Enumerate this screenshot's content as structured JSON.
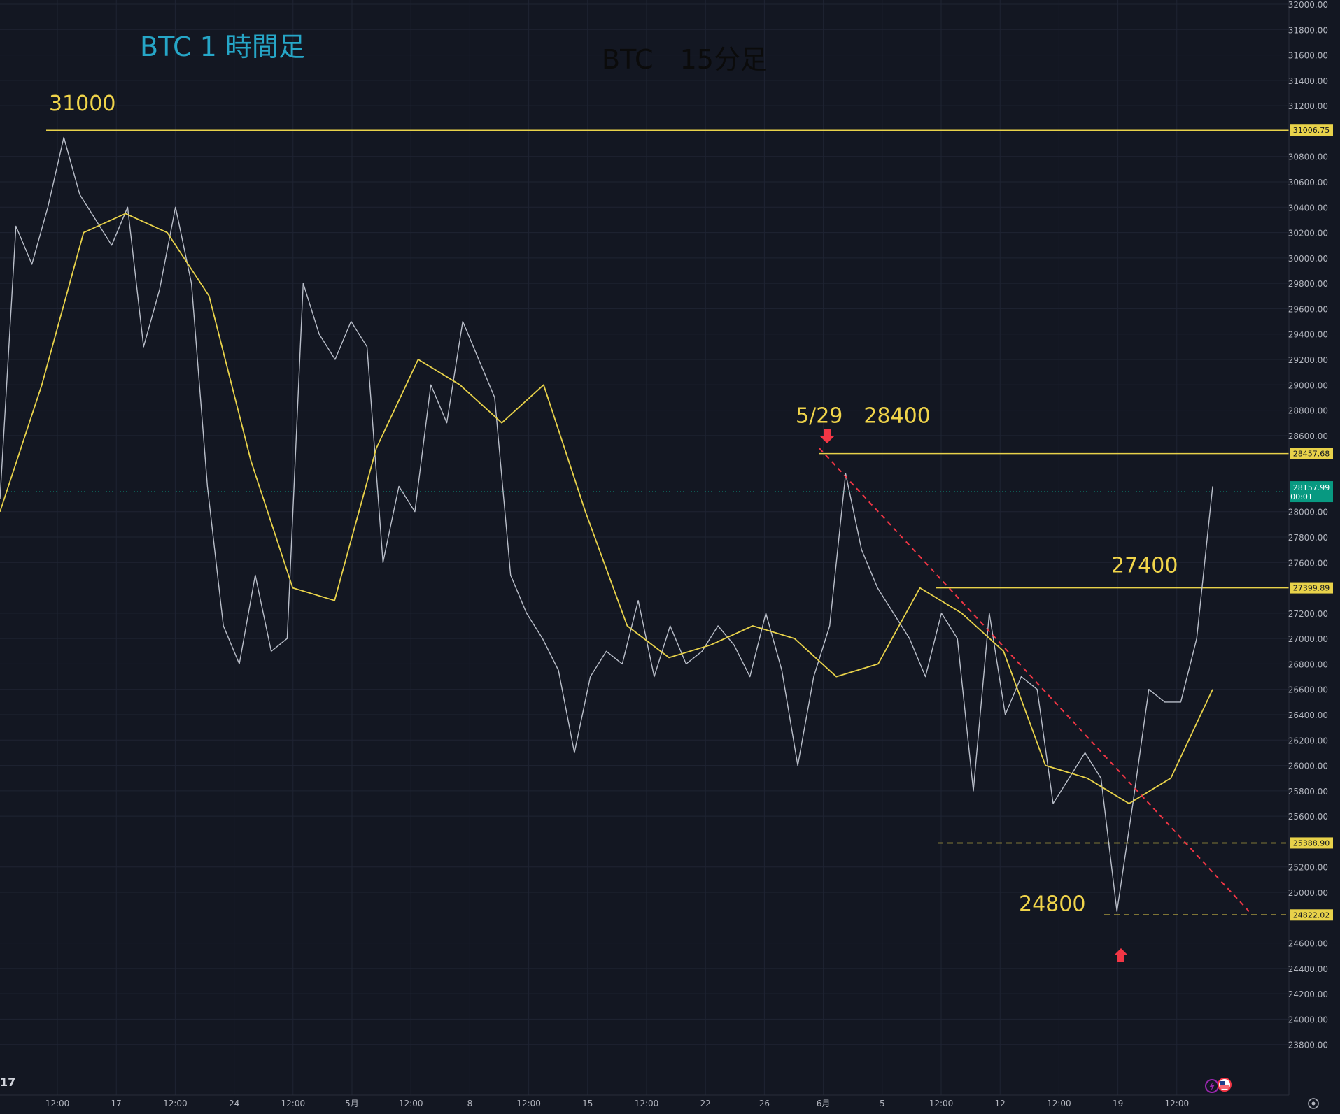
{
  "chart_data": {
    "type": "line",
    "title": "BTC 1 時間足",
    "subtitle": "BTC　15分足",
    "xlabel": "",
    "ylabel": "",
    "ylim": [
      23600,
      32000
    ],
    "price_scale_ticks": [
      "32000.00",
      "31800.00",
      "31600.00",
      "31400.00",
      "31200.00",
      "30800.00",
      "30600.00",
      "30400.00",
      "30200.00",
      "30000.00",
      "29800.00",
      "29600.00",
      "29400.00",
      "29200.00",
      "29000.00",
      "28800.00",
      "28600.00",
      "28000.00",
      "27800.00",
      "27600.00",
      "27200.00",
      "27000.00",
      "26800.00",
      "26600.00",
      "26400.00",
      "26200.00",
      "26000.00",
      "25800.00",
      "25600.00",
      "25200.00",
      "25000.00",
      "24600.00",
      "24400.00",
      "24200.00",
      "24000.00",
      "23800.00"
    ],
    "x_tick_labels": [
      "12:00",
      "17",
      "12:00",
      "24",
      "12:00",
      "5月",
      "12:00",
      "8",
      "12:00",
      "15",
      "12:00",
      "22",
      "26",
      "6月",
      "5",
      "12:00",
      "12",
      "12:00",
      "19",
      "12:00"
    ],
    "series": [
      {
        "values": [
          28100,
          30250,
          29950,
          30400,
          30950,
          30500,
          30300,
          30100,
          30400,
          29300,
          29750,
          30400,
          29800,
          28200,
          27100,
          26800,
          27500,
          26900,
          27000,
          29800,
          29400,
          29200,
          29500,
          29300,
          27600,
          28200,
          28000,
          29000,
          28700,
          29500,
          29200,
          28900,
          27500,
          27200,
          27000,
          26750,
          26100,
          26700,
          26900,
          26800,
          27300,
          26700,
          27100,
          26800,
          26900,
          27100,
          26950,
          26700,
          27200,
          26750,
          26000,
          26700,
          27100,
          28300,
          27700,
          27400,
          27200,
          27000,
          26700,
          27200,
          27000,
          25800,
          27200,
          26400,
          26700,
          26600,
          25700,
          25900,
          26100,
          25900,
          24850,
          25700,
          26600,
          26500,
          26500,
          27000,
          28200
        ],
        "color": "#b9bec9"
      },
      {
        "values": [
          28000,
          29000,
          30200,
          30350,
          30200,
          29700,
          28400,
          27400,
          27300,
          28500,
          29200,
          29000,
          28700,
          29000,
          28000,
          27100,
          26850,
          26950,
          27100,
          27000,
          26700,
          26800,
          27400,
          27200,
          26900,
          26000,
          25900,
          25700,
          25900,
          26600
        ],
        "color": "#e8d24a"
      }
    ],
    "levels": [
      {
        "value": 31006.75,
        "label": "31006.75",
        "note": "31000",
        "style": "solid",
        "color": "#e8d24a"
      },
      {
        "value": 28457.68,
        "label": "28457.68",
        "note": "5/29　28400",
        "style": "solid",
        "color": "#e8d24a"
      },
      {
        "value": 27399.89,
        "label": "27399.89",
        "note": "27400",
        "style": "solid",
        "color": "#e8d24a"
      },
      {
        "value": 25388.9,
        "label": "25388.90",
        "style": "dashed",
        "color": "#e8d24a"
      },
      {
        "value": 24822.02,
        "label": "24822.02",
        "note": "24800",
        "style": "dashed",
        "color": "#e8d24a"
      }
    ],
    "current_price": {
      "value": 28157.99,
      "label": "28157.99",
      "countdown": "00:01",
      "color": "#089981"
    },
    "trendline": {
      "from": 28500,
      "to": 24850,
      "color": "#f23645"
    },
    "markers": [
      {
        "type": "down-arrow",
        "color": "#f23645"
      },
      {
        "type": "up-arrow",
        "color": "#f23645"
      }
    ]
  },
  "colors": {
    "background": "#131722",
    "grid": "#1f2433",
    "axis_text": "#b2b5be",
    "title_color": "#26a6c7",
    "subtitle_color": "#0b0b0b"
  },
  "corner_text": "17",
  "icons": [
    "lightning-icon",
    "us-flag-icon",
    "settings-icon"
  ]
}
